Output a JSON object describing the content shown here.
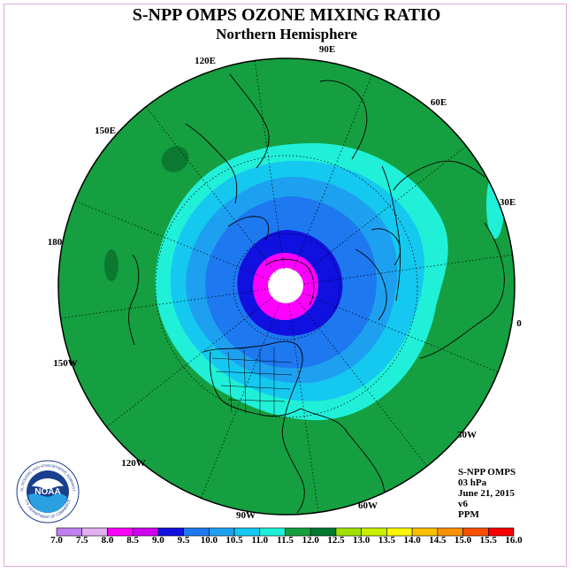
{
  "title": "S-NPP OMPS OZONE MIXING RATIO",
  "subtitle": "Northern Hemisphere",
  "longitude_labels": [
    "90E",
    "60E",
    "30E",
    "0",
    "30W",
    "60W",
    "90W",
    "120W",
    "150W",
    "180",
    "150E",
    "120E"
  ],
  "info": {
    "line1": "S-NPP OMPS",
    "line2": "03 hPa",
    "line3": "June 21, 2015",
    "line4": "v6",
    "line5": "PPM"
  },
  "logo": {
    "text": "NOAA",
    "ring_text": "NATIONAL OCEANIC AND ATMOSPHERIC ADMINISTRATION",
    "ring_text_bottom": "U.S. DEPARTMENT OF COMMERCE"
  },
  "colorbar": {
    "labels": [
      "7.0",
      "7.5",
      "8.0",
      "8.5",
      "9.0",
      "9.5",
      "10.0",
      "10.5",
      "11.0",
      "11.5",
      "12.0",
      "12.5",
      "13.0",
      "13.5",
      "14.0",
      "14.5",
      "15.0",
      "15.5",
      "16.0"
    ],
    "colors": [
      "#c080f0",
      "#e0b0f0",
      "#ff00ff",
      "#d000f0",
      "#1010e0",
      "#1e78f0",
      "#1ea0f0",
      "#14c8f0",
      "#20f0d8",
      "#159f40",
      "#007830",
      "#a0e000",
      "#c8f000",
      "#f8f800",
      "#f8c000",
      "#f89000",
      "#f85000",
      "#f80000",
      "#a05030"
    ]
  },
  "map_colors": {
    "background": "#159f40",
    "dark_green": "#0b7a30",
    "aqua": "#20f0d8",
    "cyan": "#14c8f0",
    "light_blue": "#1ea0f0",
    "blue": "#1e78f0",
    "deep_blue": "#1010e0",
    "magenta": "#ff00ff",
    "nodata": "#ffffff"
  }
}
